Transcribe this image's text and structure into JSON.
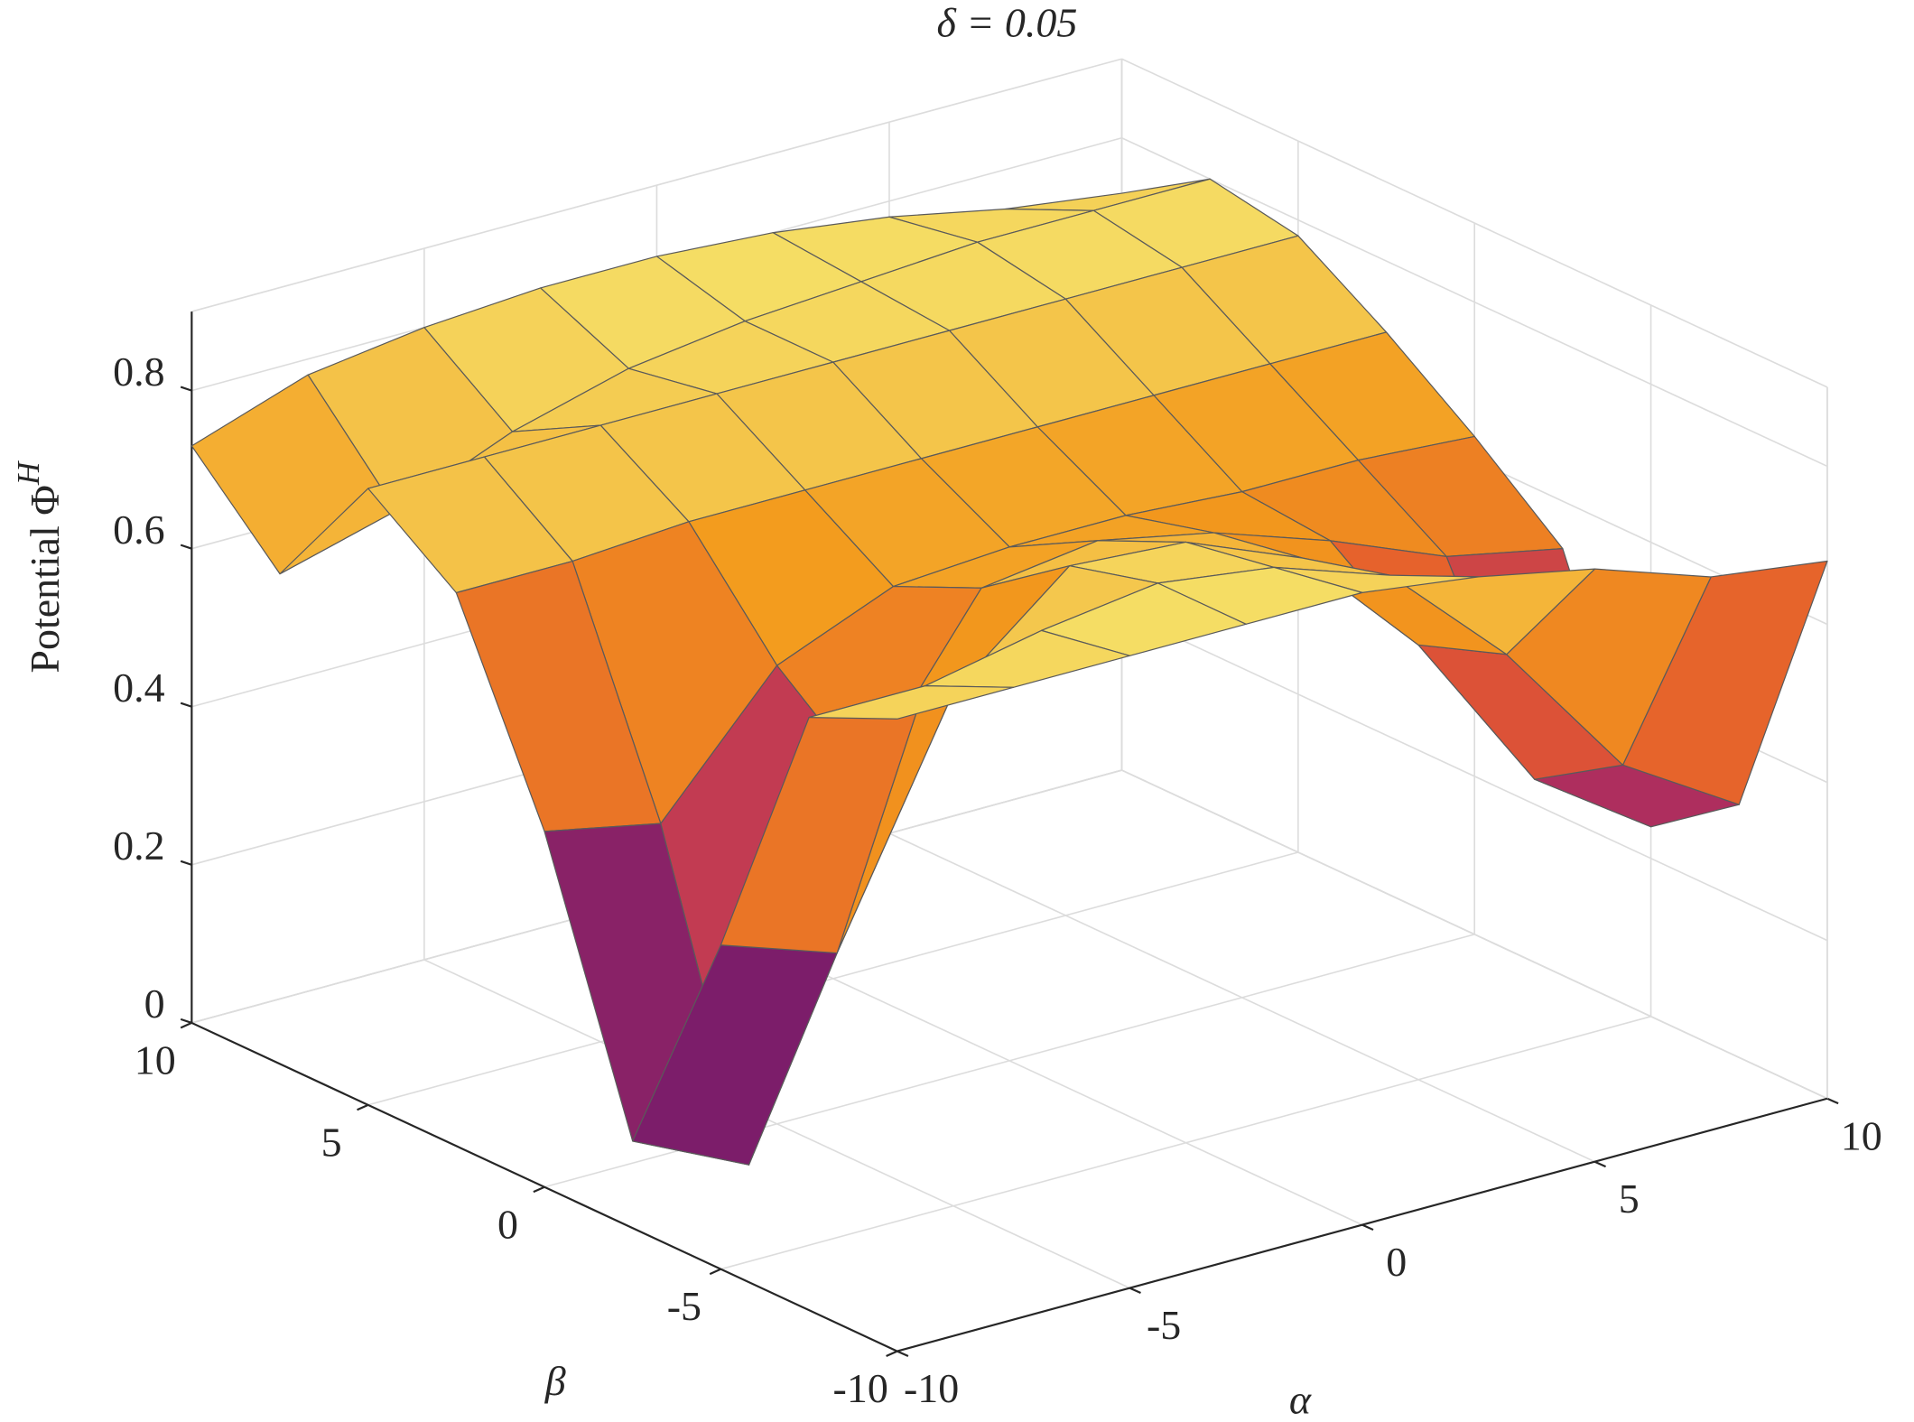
{
  "chart_data": {
    "type": "surface3d",
    "title": "δ = 0.05",
    "z_label": "Potential Φ",
    "z_label_superscript": "H",
    "x_label": "α",
    "y_label": "β",
    "xlim": [
      -10,
      10
    ],
    "ylim": [
      -10,
      10
    ],
    "zlim": [
      0,
      0.9
    ],
    "xticks": [
      -10,
      -5,
      0,
      5,
      10
    ],
    "yticks": [
      -10,
      -5,
      0,
      5,
      10
    ],
    "zticks": [
      0,
      0.2,
      0.4,
      0.6,
      0.8
    ],
    "grid": true,
    "colormap": [
      "#2d0b59",
      "#6a176e",
      "#b8325c",
      "#e4592e",
      "#f39a1c",
      "#f5e46c"
    ],
    "edge_color": "#5a5a5a",
    "x": [
      -10,
      -7.5,
      -5,
      -2.5,
      0,
      2.5,
      5,
      7.5,
      10
    ],
    "y": [
      -10,
      -7.5,
      -5,
      -2.5,
      0,
      2.5,
      5,
      7.5,
      10
    ],
    "z": [
      [
        0.8,
        0.8,
        0.8,
        0.8,
        0.8,
        0.78,
        0.75,
        0.7,
        0.68
      ],
      [
        0.75,
        0.75,
        0.78,
        0.8,
        0.78,
        0.73,
        0.59,
        0.41,
        0.32
      ],
      [
        0.41,
        0.36,
        0.65,
        0.77,
        0.76,
        0.7,
        0.55,
        0.34,
        0.24
      ],
      [
        0.11,
        0.04,
        0.49,
        0.69,
        0.71,
        0.68,
        0.63,
        0.57,
        0.54
      ],
      [
        0.45,
        0.42,
        0.58,
        0.64,
        0.65,
        0.65,
        0.64,
        0.64,
        0.63
      ],
      [
        0.7,
        0.7,
        0.71,
        0.71,
        0.71,
        0.71,
        0.71,
        0.71,
        0.71
      ],
      [
        0.78,
        0.78,
        0.78,
        0.78,
        0.78,
        0.78,
        0.78,
        0.78,
        0.78
      ],
      [
        0.62,
        0.66,
        0.72,
        0.76,
        0.78,
        0.79,
        0.8,
        0.8,
        0.8
      ],
      [
        0.73,
        0.78,
        0.8,
        0.81,
        0.81,
        0.8,
        0.78,
        0.75,
        0.73
      ]
    ]
  }
}
